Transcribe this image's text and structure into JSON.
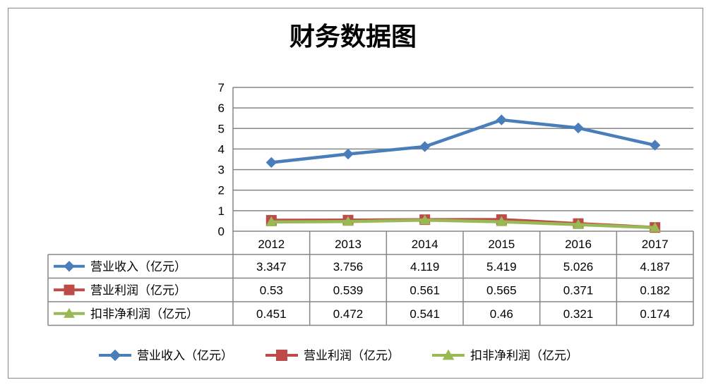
{
  "chart_data": {
    "type": "line",
    "title": "财务数据图",
    "categories": [
      "2012",
      "2013",
      "2014",
      "2015",
      "2016",
      "2017"
    ],
    "ylim": [
      0,
      7
    ],
    "yticks": [
      0,
      1,
      2,
      3,
      4,
      5,
      6,
      7
    ],
    "grid": true,
    "legend_position": "bottom",
    "data_table": true,
    "series": [
      {
        "name": "营业收入（亿元）",
        "values": [
          3.347,
          3.756,
          4.119,
          5.419,
          5.026,
          4.187
        ],
        "labels": [
          "3.347",
          "3.756",
          "4.119",
          "5.419",
          "5.026",
          "4.187"
        ],
        "color": "#4A7EBB",
        "marker": "diamond"
      },
      {
        "name": "营业利润（亿元）",
        "values": [
          0.53,
          0.539,
          0.561,
          0.565,
          0.371,
          0.182
        ],
        "labels": [
          "0.53",
          "0.539",
          "0.561",
          "0.565",
          "0.371",
          "0.182"
        ],
        "color": "#BE4B48",
        "marker": "square"
      },
      {
        "name": "扣非净利润（亿元）",
        "values": [
          0.451,
          0.472,
          0.541,
          0.46,
          0.321,
          0.174
        ],
        "labels": [
          "0.451",
          "0.472",
          "0.541",
          "0.46",
          "0.321",
          "0.174"
        ],
        "color": "#98B954",
        "marker": "triangle"
      }
    ]
  }
}
